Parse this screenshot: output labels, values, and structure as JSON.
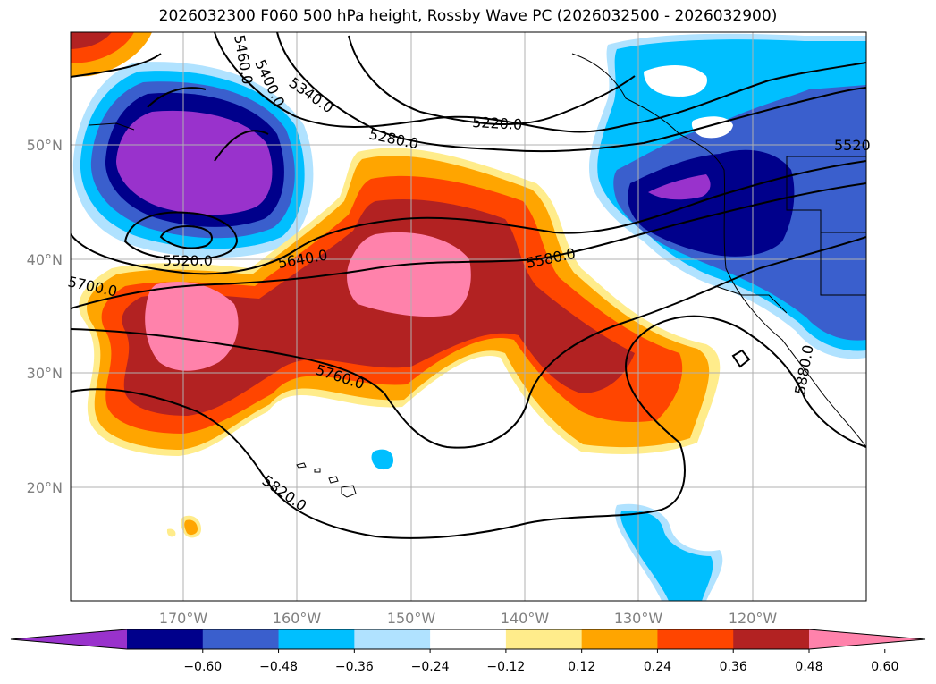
{
  "title": "2026032300 F060 500 hPa height, Rossby Wave PC (2026032500 - 2026032900)",
  "map": {
    "lat_labels": [
      "50°N",
      "40°N",
      "30°N",
      "20°N"
    ],
    "lon_labels": [
      "170°W",
      "160°W",
      "150°W",
      "140°W",
      "130°W",
      "120°W"
    ],
    "height_contour_labels": [
      "5460.0",
      "5400.0",
      "5340.0",
      "5220.0",
      "5280.0",
      "5520",
      "5520.0",
      "5640.0",
      "5580.0",
      "5700.0",
      "5760.0",
      "5820.0",
      "5880.0"
    ]
  },
  "colorbar": {
    "ticks": [
      "−0.60",
      "−0.48",
      "−0.36",
      "−0.24",
      "−0.12",
      "0.12",
      "0.24",
      "0.36",
      "0.48",
      "0.60"
    ],
    "colors": [
      "#9932cc",
      "#00008b",
      "#3a5fcd",
      "#00bfff",
      "#b0e2ff",
      "#ffffff",
      "#ffec8b",
      "#ffa500",
      "#ff4500",
      "#b22222",
      "#ff82ab"
    ]
  }
}
